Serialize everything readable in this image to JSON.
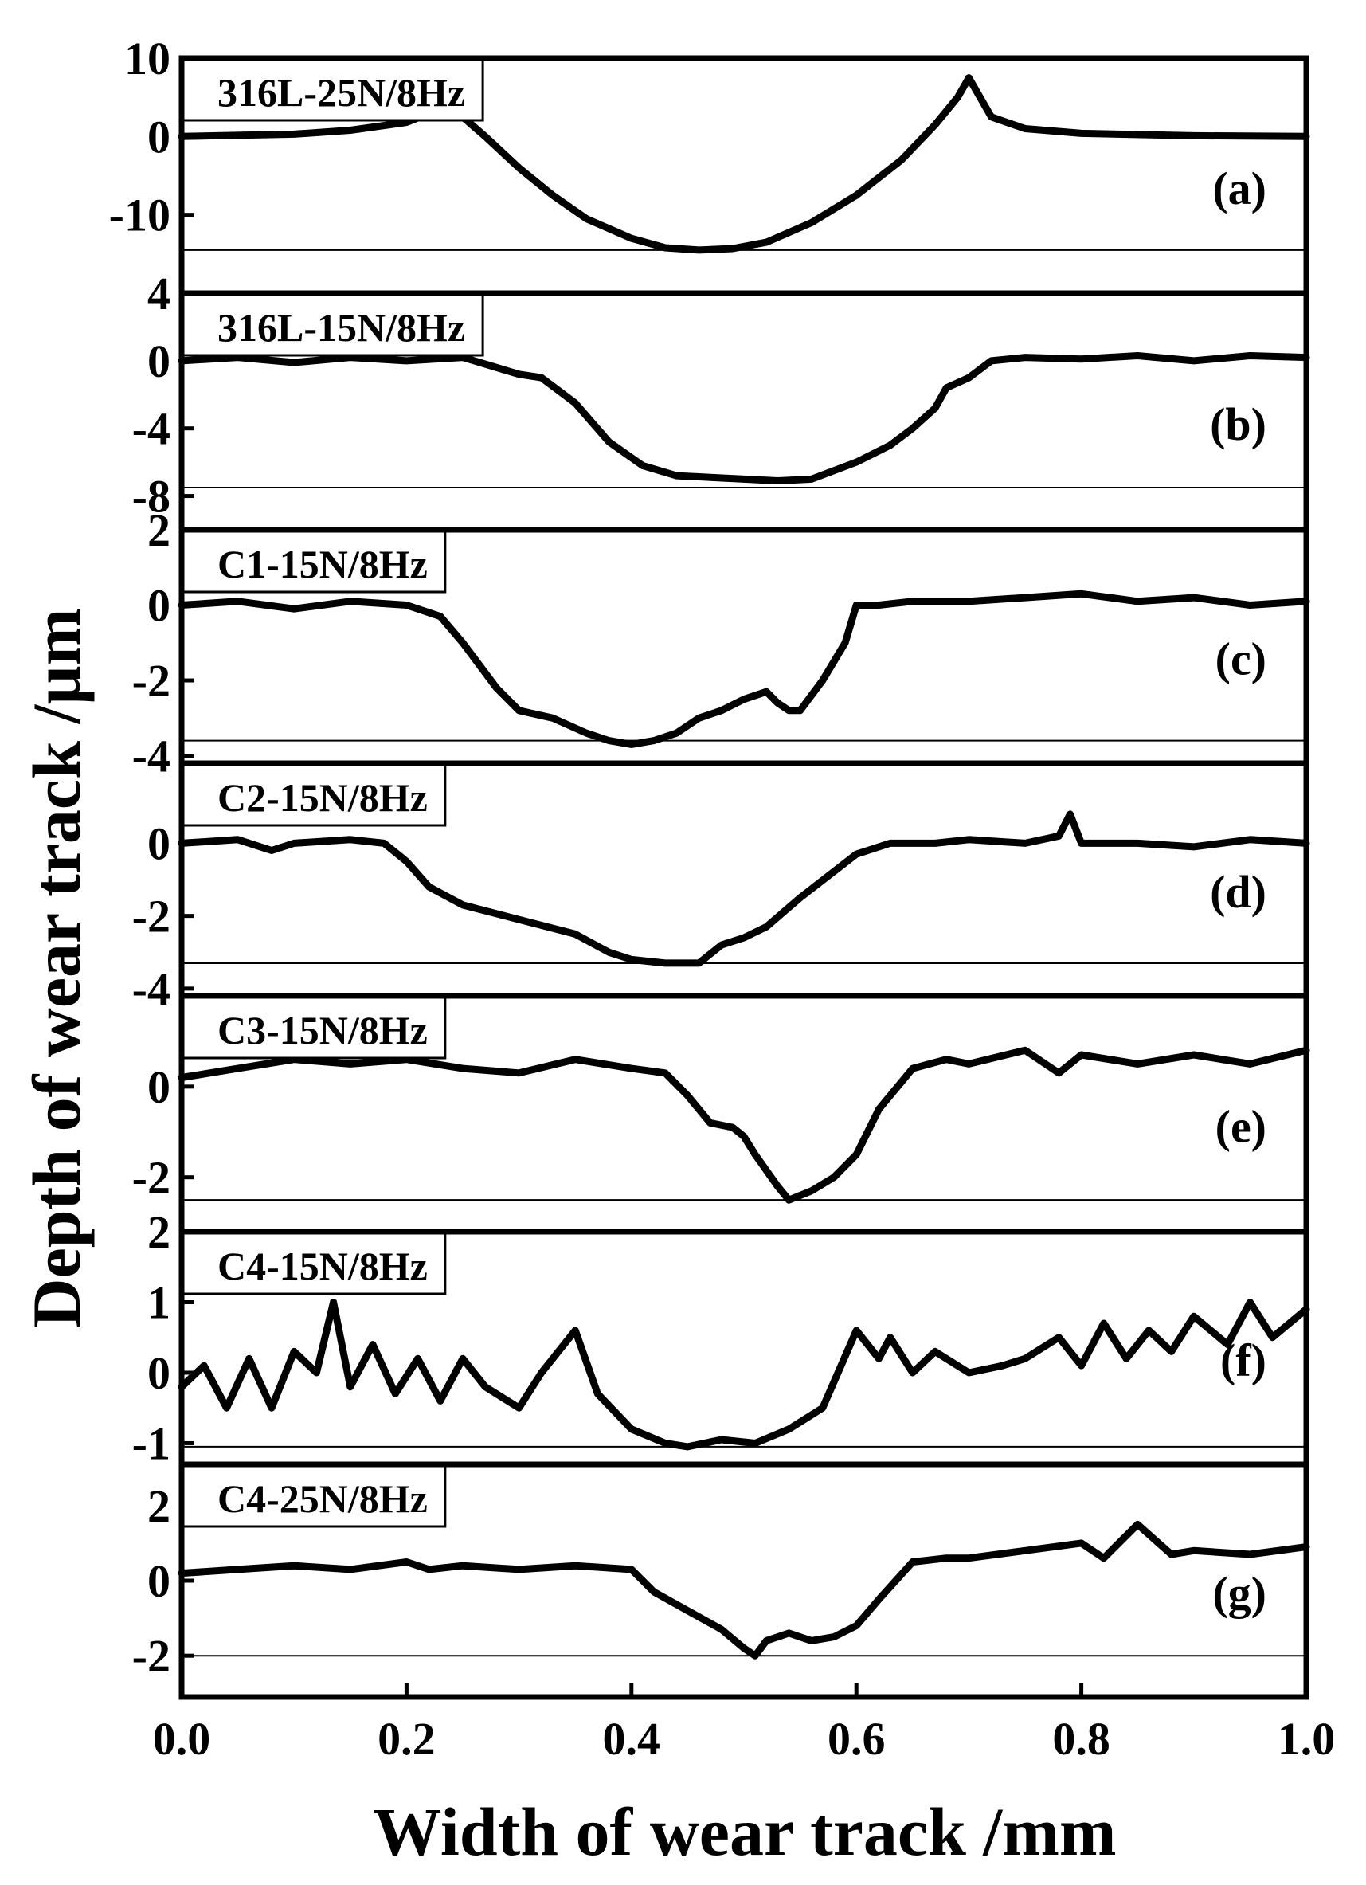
{
  "chart_data": {
    "type": "line",
    "xlabel": "Width of wear track /mm",
    "ylabel": "Depth of wear track /µm",
    "xlim": [
      0.0,
      1.0
    ],
    "x_ticks": [
      "0.0",
      "0.2",
      "0.4",
      "0.6",
      "0.8",
      "1.0"
    ],
    "panels": [
      {
        "id": "a",
        "letter": "(a)",
        "name": "316L-25N/8Hz",
        "ylim": [
          -20,
          10
        ],
        "y_ticks": [
          10,
          0,
          -10
        ],
        "baseline": -14.5,
        "x": [
          0.0,
          0.1,
          0.15,
          0.2,
          0.23,
          0.25,
          0.27,
          0.3,
          0.33,
          0.36,
          0.4,
          0.43,
          0.46,
          0.49,
          0.52,
          0.56,
          0.6,
          0.64,
          0.67,
          0.69,
          0.7,
          0.71,
          0.72,
          0.75,
          0.8,
          0.9,
          1.0
        ],
        "y": [
          0,
          0.3,
          0.8,
          1.8,
          3.5,
          2.5,
          0,
          -4,
          -7.5,
          -10.5,
          -13,
          -14.2,
          -14.5,
          -14.3,
          -13.5,
          -11,
          -7.5,
          -3,
          1.5,
          5,
          7.5,
          5,
          2.5,
          1.0,
          0.4,
          0.1,
          0
        ]
      },
      {
        "id": "b",
        "letter": "(b)",
        "name": "316L-15N/8Hz",
        "ylim": [
          -10,
          4
        ],
        "y_ticks": [
          4,
          0,
          -4,
          -8
        ],
        "baseline": -7.5,
        "x": [
          0.0,
          0.05,
          0.1,
          0.15,
          0.2,
          0.25,
          0.27,
          0.3,
          0.32,
          0.35,
          0.38,
          0.41,
          0.44,
          0.47,
          0.5,
          0.53,
          0.56,
          0.6,
          0.63,
          0.65,
          0.67,
          0.68,
          0.7,
          0.72,
          0.75,
          0.8,
          0.85,
          0.9,
          0.95,
          1.0
        ],
        "y": [
          0,
          0.2,
          -0.1,
          0.2,
          0,
          0.2,
          -0.2,
          -0.8,
          -1.0,
          -2.5,
          -4.8,
          -6.2,
          -6.8,
          -6.9,
          -7.0,
          -7.1,
          -7.0,
          -6.0,
          -5.0,
          -4.0,
          -2.8,
          -1.6,
          -1.0,
          0.0,
          0.2,
          0.1,
          0.3,
          0.0,
          0.3,
          0.2
        ]
      },
      {
        "id": "c",
        "letter": "(c)",
        "name": "C1-15N/8Hz",
        "ylim": [
          -4.2,
          2
        ],
        "y_ticks": [
          2,
          0,
          -2,
          -4
        ],
        "baseline": -3.6,
        "x": [
          0.0,
          0.05,
          0.1,
          0.15,
          0.2,
          0.23,
          0.25,
          0.28,
          0.3,
          0.33,
          0.36,
          0.38,
          0.4,
          0.42,
          0.44,
          0.46,
          0.48,
          0.5,
          0.52,
          0.53,
          0.54,
          0.55,
          0.57,
          0.59,
          0.6,
          0.62,
          0.65,
          0.7,
          0.75,
          0.8,
          0.85,
          0.9,
          0.95,
          1.0
        ],
        "y": [
          0,
          0.1,
          -0.1,
          0.1,
          0,
          -0.3,
          -1.0,
          -2.2,
          -2.8,
          -3.0,
          -3.4,
          -3.6,
          -3.7,
          -3.6,
          -3.4,
          -3.0,
          -2.8,
          -2.5,
          -2.3,
          -2.6,
          -2.8,
          -2.8,
          -2.0,
          -1.0,
          0.0,
          0.0,
          0.1,
          0.1,
          0.2,
          0.3,
          0.1,
          0.2,
          0.0,
          0.1
        ]
      },
      {
        "id": "d",
        "letter": "(d)",
        "name": "C2-15N/8Hz",
        "ylim": [
          -4.2,
          2.2
        ],
        "y_ticks": [
          0,
          -2,
          -4
        ],
        "baseline": -3.3,
        "x": [
          0.0,
          0.05,
          0.08,
          0.1,
          0.15,
          0.18,
          0.2,
          0.22,
          0.25,
          0.3,
          0.35,
          0.38,
          0.4,
          0.43,
          0.46,
          0.48,
          0.5,
          0.52,
          0.55,
          0.6,
          0.63,
          0.67,
          0.7,
          0.75,
          0.78,
          0.79,
          0.8,
          0.82,
          0.85,
          0.9,
          0.95,
          1.0
        ],
        "y": [
          0,
          0.1,
          -0.2,
          0.0,
          0.1,
          0.0,
          -0.5,
          -1.2,
          -1.7,
          -2.1,
          -2.5,
          -3.0,
          -3.2,
          -3.3,
          -3.3,
          -2.8,
          -2.6,
          -2.3,
          -1.5,
          -0.3,
          0.0,
          0.0,
          0.1,
          0.0,
          0.2,
          0.8,
          0.0,
          0.0,
          0.0,
          -0.1,
          0.1,
          0.0
        ]
      },
      {
        "id": "e",
        "letter": "(e)",
        "name": "C3-15N/8Hz",
        "ylim": [
          -3.2,
          2
        ],
        "y_ticks": [
          0,
          -2
        ],
        "baseline": -2.5,
        "x": [
          0.0,
          0.05,
          0.1,
          0.15,
          0.2,
          0.25,
          0.3,
          0.35,
          0.4,
          0.43,
          0.45,
          0.47,
          0.49,
          0.5,
          0.51,
          0.53,
          0.54,
          0.56,
          0.58,
          0.6,
          0.62,
          0.65,
          0.68,
          0.7,
          0.75,
          0.78,
          0.8,
          0.85,
          0.9,
          0.95,
          1.0
        ],
        "y": [
          0.2,
          0.4,
          0.6,
          0.5,
          0.6,
          0.4,
          0.3,
          0.6,
          0.4,
          0.3,
          -0.2,
          -0.8,
          -0.9,
          -1.1,
          -1.5,
          -2.2,
          -2.5,
          -2.3,
          -2.0,
          -1.5,
          -0.5,
          0.4,
          0.6,
          0.5,
          0.8,
          0.3,
          0.7,
          0.5,
          0.7,
          0.5,
          0.8
        ]
      },
      {
        "id": "f",
        "letter": "(f)",
        "name": "C4-15N/8Hz",
        "ylim": [
          -1.3,
          2
        ],
        "y_ticks": [
          2,
          1,
          0,
          -1
        ],
        "baseline": -1.05,
        "x": [
          0.0,
          0.02,
          0.04,
          0.06,
          0.08,
          0.1,
          0.12,
          0.135,
          0.15,
          0.17,
          0.19,
          0.21,
          0.23,
          0.25,
          0.27,
          0.3,
          0.32,
          0.34,
          0.35,
          0.37,
          0.4,
          0.43,
          0.45,
          0.48,
          0.51,
          0.54,
          0.57,
          0.6,
          0.62,
          0.63,
          0.65,
          0.67,
          0.7,
          0.73,
          0.75,
          0.78,
          0.8,
          0.82,
          0.84,
          0.86,
          0.88,
          0.9,
          0.93,
          0.95,
          0.97,
          1.0
        ],
        "y": [
          -0.2,
          0.1,
          -0.5,
          0.2,
          -0.5,
          0.3,
          0.0,
          1.0,
          -0.2,
          0.4,
          -0.3,
          0.2,
          -0.4,
          0.2,
          -0.2,
          -0.5,
          0.0,
          0.4,
          0.6,
          -0.3,
          -0.8,
          -1.0,
          -1.05,
          -0.95,
          -1.0,
          -0.8,
          -0.5,
          0.6,
          0.2,
          0.5,
          0.0,
          0.3,
          0.0,
          0.1,
          0.2,
          0.5,
          0.1,
          0.7,
          0.2,
          0.6,
          0.3,
          0.8,
          0.4,
          1.0,
          0.5,
          0.9
        ]
      },
      {
        "id": "g",
        "letter": "(g)",
        "name": "C4-25N/8Hz",
        "ylim": [
          -3.1,
          3.1
        ],
        "y_ticks": [
          2,
          0,
          -2
        ],
        "baseline": -2.0,
        "x": [
          0.0,
          0.05,
          0.1,
          0.15,
          0.2,
          0.22,
          0.25,
          0.3,
          0.35,
          0.4,
          0.42,
          0.45,
          0.48,
          0.5,
          0.51,
          0.52,
          0.54,
          0.56,
          0.58,
          0.6,
          0.62,
          0.65,
          0.68,
          0.7,
          0.75,
          0.8,
          0.82,
          0.85,
          0.88,
          0.9,
          0.95,
          1.0
        ],
        "y": [
          0.2,
          0.3,
          0.4,
          0.3,
          0.5,
          0.3,
          0.4,
          0.3,
          0.4,
          0.3,
          -0.3,
          -0.8,
          -1.3,
          -1.8,
          -2.0,
          -1.6,
          -1.4,
          -1.6,
          -1.5,
          -1.2,
          -0.5,
          0.5,
          0.6,
          0.6,
          0.8,
          1.0,
          0.6,
          1.5,
          0.7,
          0.8,
          0.7,
          0.9
        ]
      }
    ]
  }
}
